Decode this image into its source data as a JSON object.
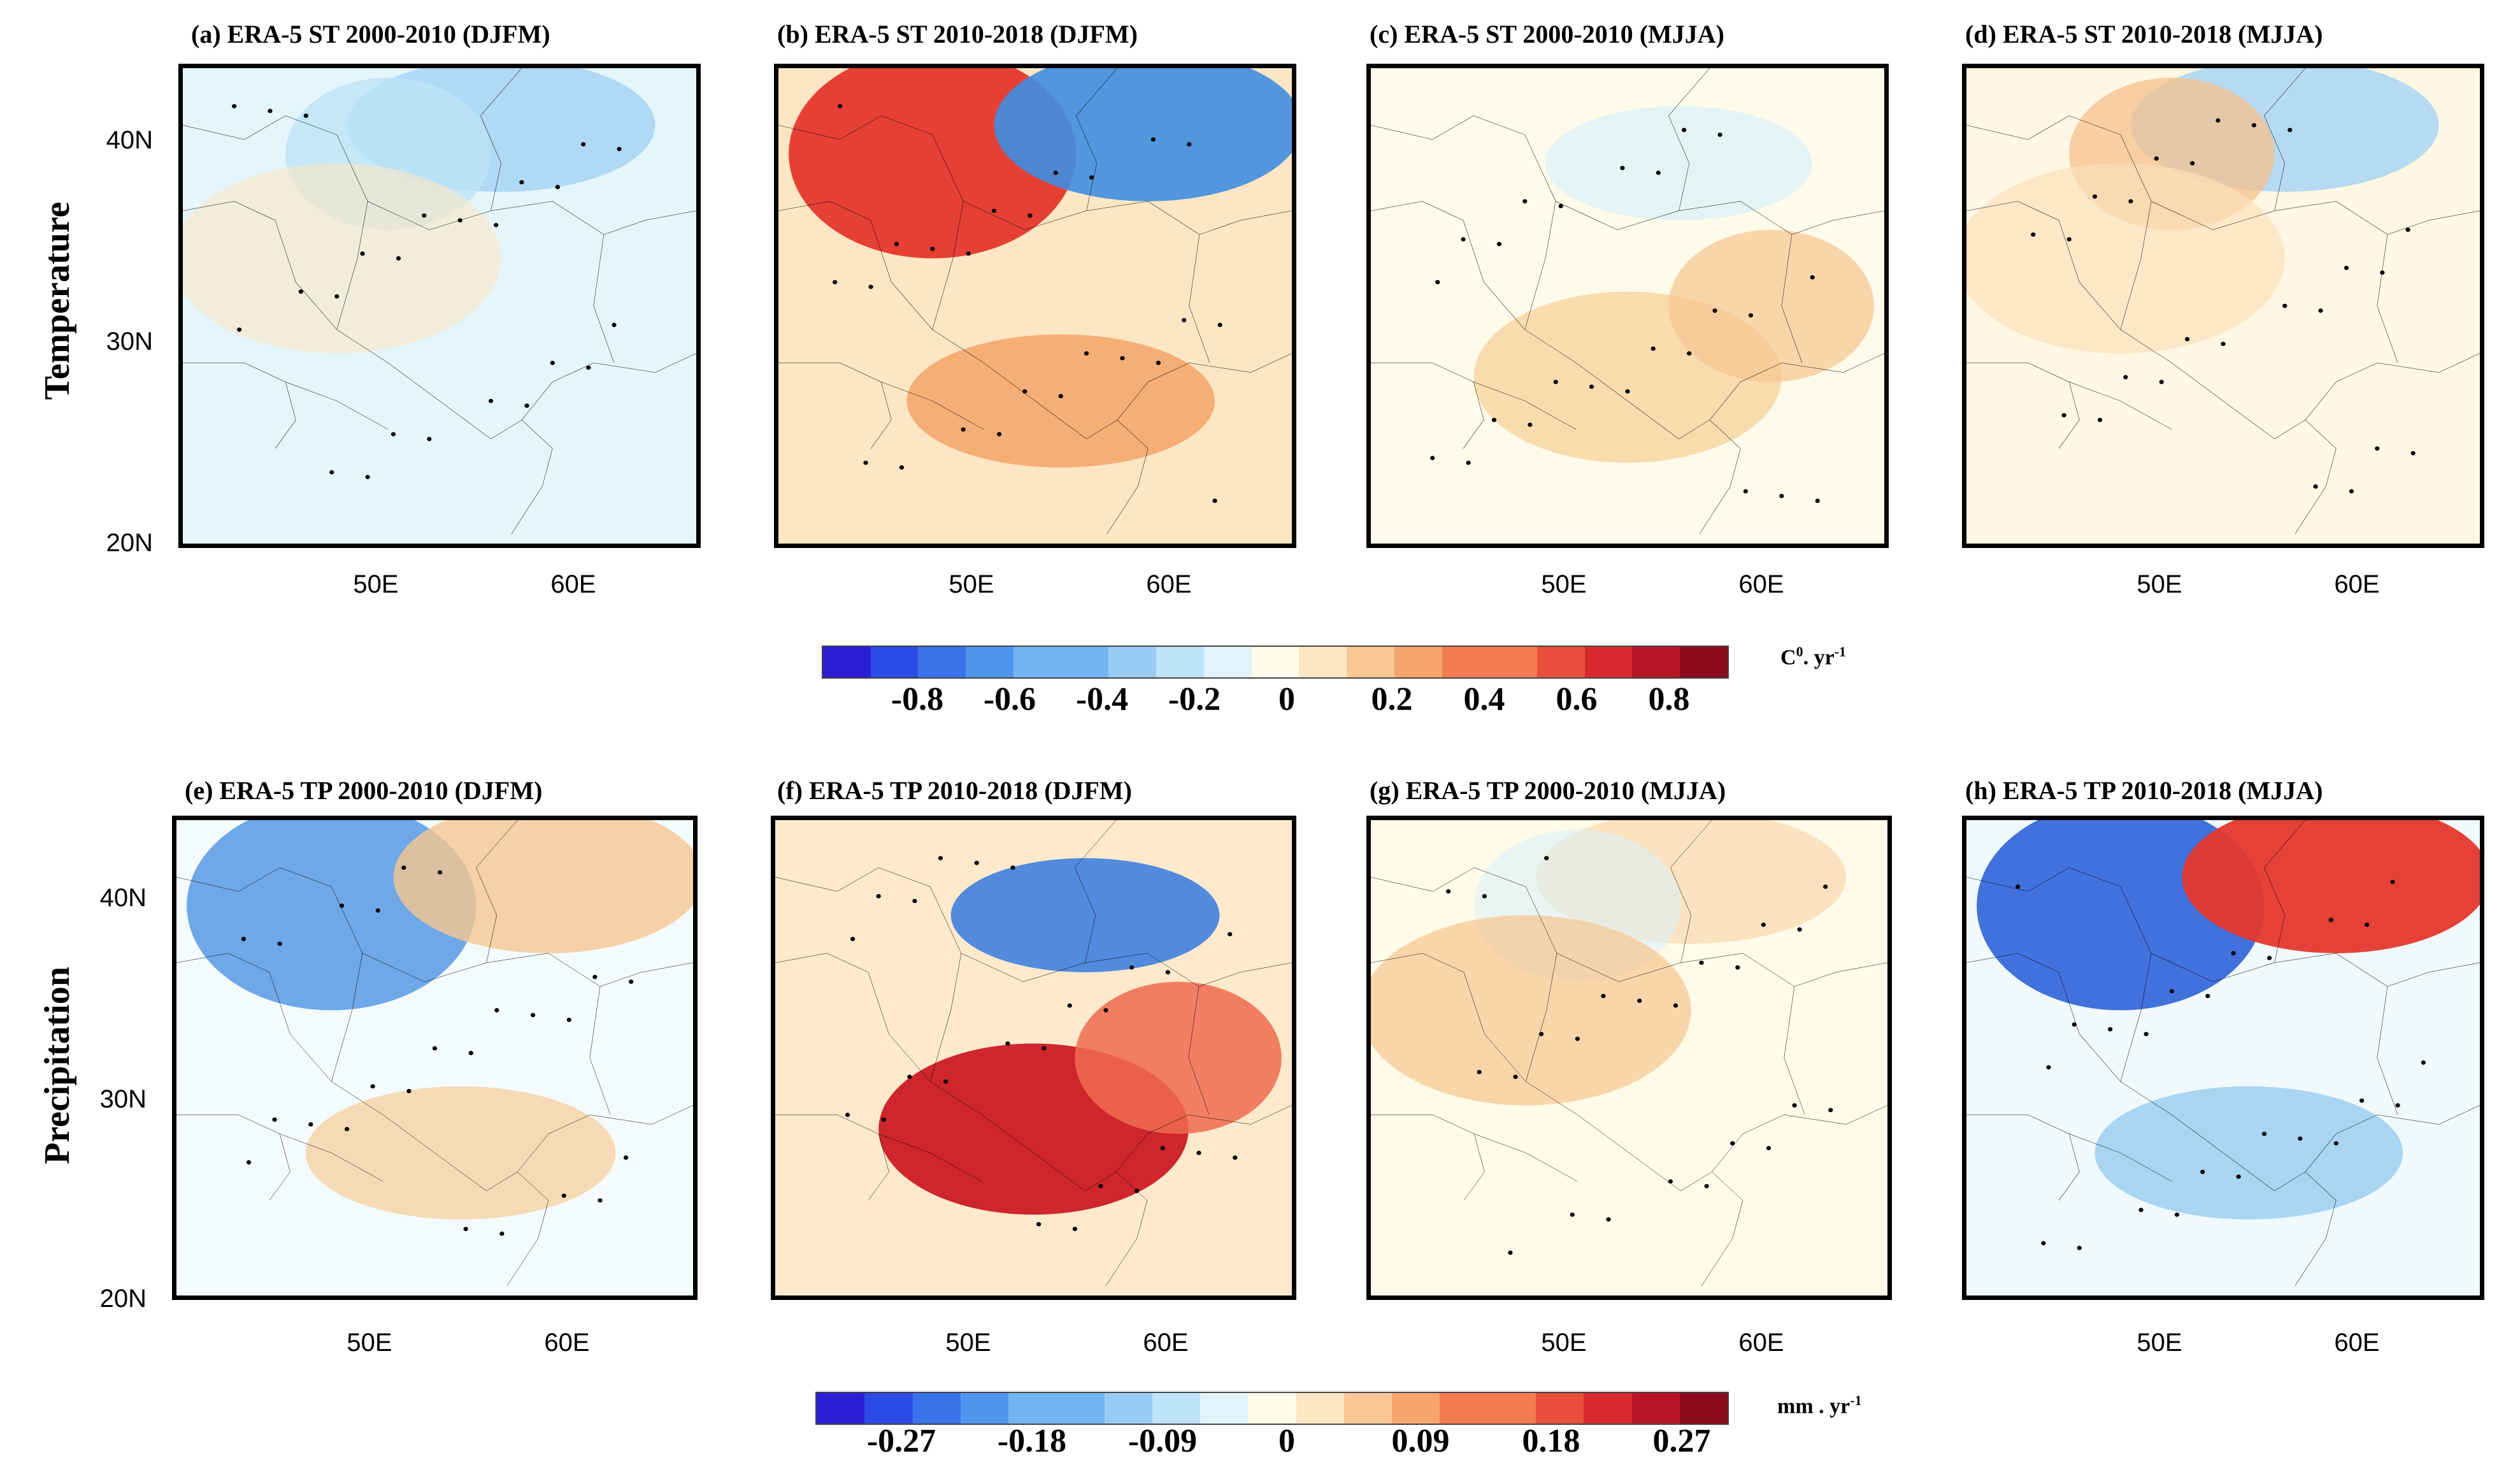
{
  "row_labels": [
    "Temperature",
    "Precipitation"
  ],
  "panels_top": [
    {
      "title": "(a) ERA-5 ST 2000-2010 (DJFM)",
      "base": "#e4f6fb",
      "blobs": [
        {
          "c": "#a9d6f4",
          "o": 0.9
        },
        {
          "c": "#bde3f7",
          "o": 0.8
        },
        {
          "c": "#fbe7c4",
          "o": 0.6
        }
      ]
    },
    {
      "title": "(b) ERA-5 ST 2010-2018 (DJFM)",
      "base": "#fde6c4",
      "blobs": [
        {
          "c": "#e5372c",
          "o": 0.95
        },
        {
          "c": "#3f8de0",
          "o": 0.9
        },
        {
          "c": "#f4a36a",
          "o": 0.85
        }
      ]
    },
    {
      "title": "(c) ERA-5 ST 2000-2010 (MJJA)",
      "base": "#fffbea",
      "blobs": [
        {
          "c": "#f8d6a3",
          "o": 0.85
        },
        {
          "c": "#d8eff8",
          "o": 0.7
        },
        {
          "c": "#f6c58f",
          "o": 0.7
        }
      ]
    },
    {
      "title": "(d) ERA-5 ST 2010-2018 (MJJA)",
      "base": "#fff7e3",
      "blobs": [
        {
          "c": "#a8d5f3",
          "o": 0.85
        },
        {
          "c": "#f6c08c",
          "o": 0.75
        },
        {
          "c": "#fbe0bb",
          "o": 0.7
        }
      ]
    }
  ],
  "panels_bottom": [
    {
      "title": "(e) ERA-5 TP 2000-2010 (DJFM)",
      "base": "#f3fbfd",
      "blobs": [
        {
          "c": "#5f9fe6",
          "o": 0.9
        },
        {
          "c": "#f6c590",
          "o": 0.8
        },
        {
          "c": "#f7cf9c",
          "o": 0.75
        }
      ]
    },
    {
      "title": "(f) ERA-5 TP 2010-2018 (DJFM)",
      "base": "#fde9cc",
      "blobs": [
        {
          "c": "#cc1a24",
          "o": 0.95
        },
        {
          "c": "#3f7fe0",
          "o": 0.9
        },
        {
          "c": "#ef6b4e",
          "o": 0.85
        }
      ]
    },
    {
      "title": "(g) ERA-5 TP 2000-2010 (MJJA)",
      "base": "#fffbe8",
      "blobs": [
        {
          "c": "#f8d8ad",
          "o": 0.7
        },
        {
          "c": "#dcf0f8",
          "o": 0.6
        },
        {
          "c": "#f6c590",
          "o": 0.7
        }
      ]
    },
    {
      "title": "(h) ERA-5 TP 2010-2018 (MJJA)",
      "base": "#f0f9fc",
      "blobs": [
        {
          "c": "#2e62d8",
          "o": 0.9
        },
        {
          "c": "#e5372c",
          "o": 0.95
        },
        {
          "c": "#9ccff1",
          "o": 0.85
        }
      ]
    }
  ],
  "lat_labels": [
    "40N",
    "30N",
    "20N"
  ],
  "lon_labels": [
    "50E",
    "60E"
  ],
  "colorbar_top": {
    "ticks": [
      "-0.8",
      "-0.6",
      "-0.4",
      "-0.2",
      "0",
      "0.2",
      "0.4",
      "0.6",
      "0.8"
    ],
    "unit_base": "C",
    "unit_sup": "0",
    "unit_rest": ". yr",
    "unit_exp": "-1"
  },
  "colorbar_bottom": {
    "ticks": [
      "-0.27",
      "-0.18",
      "-0.09",
      "0",
      "0.09",
      "0.18",
      "0.27"
    ],
    "unit_base": "mm . yr",
    "unit_exp": "-1"
  },
  "colors": [
    "#2b1fd6",
    "#2c4ae6",
    "#3a72ea",
    "#4f95ee",
    "#73b4f2",
    "#99ccf5",
    "#bfe3f8",
    "#e1f3fb",
    "#fffbe8",
    "#fde6c4",
    "#f9c894",
    "#f6a56d",
    "#f17c51",
    "#e8503d",
    "#d62a2e",
    "#b71525",
    "#8b0b1c"
  ]
}
